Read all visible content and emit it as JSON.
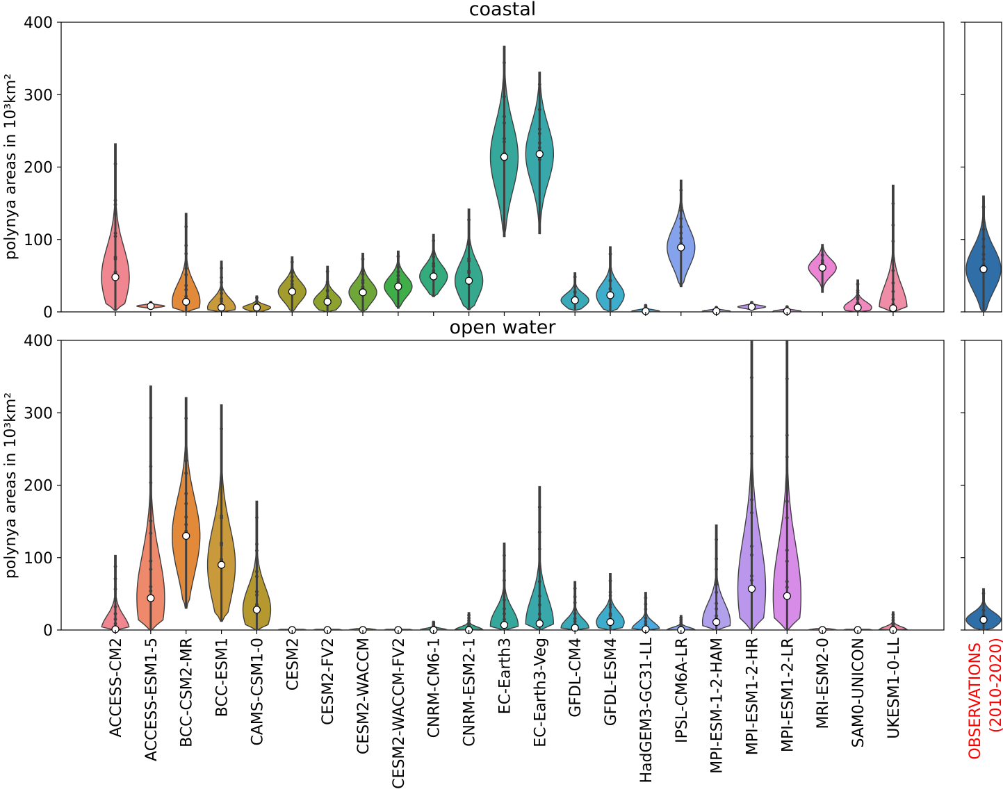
{
  "chart_data": [
    {
      "type": "violin",
      "title": "coastal",
      "ylabel": "polynya areas in 10³km²",
      "ylim": [
        0,
        400
      ],
      "yticks": [
        0,
        100,
        200,
        300,
        400
      ],
      "models": [
        "ACCESS-CM2",
        "ACCESS-ESM1-5",
        "BCC-CSM2-MR",
        "BCC-ESM1",
        "CAMS-CSM1-0",
        "CESM2",
        "CESM2-FV2",
        "CESM2-WACCM",
        "CESM2-WACCM-FV2",
        "CNRM-CM6-1",
        "CNRM-ESM2-1",
        "EC-Earth3",
        "EC-Earth3-Veg",
        "GFDL-CM4",
        "GFDL-ESM4",
        "HadGEM3-GC31-LL",
        "IPSL-CM6A-LR",
        "MPI-ESM-1-2-HAM",
        "MPI-ESM1-2-HR",
        "MPI-ESM1-2-LR",
        "MRI-ESM2-0",
        "SAM0-UNICON",
        "UKESM1-0-LL"
      ],
      "colors": [
        "#f0868f",
        "#ee8a6b",
        "#e28a3a",
        "#c99a3c",
        "#b5992f",
        "#a19c2d",
        "#8da22d",
        "#6ea63a",
        "#3fae49",
        "#33ab7c",
        "#35a88e",
        "#35a79b",
        "#38a8aa",
        "#3aa9b8",
        "#3eaccb",
        "#4aa9de",
        "#85a3ec",
        "#b1a0ec",
        "#ba96ec",
        "#d78ce8",
        "#ea84d3",
        "#f089bd",
        "#f08da6"
      ],
      "medians": [
        48,
        8,
        14,
        6,
        6,
        28,
        14,
        27,
        35,
        49,
        43,
        214,
        218,
        16,
        23,
        1,
        89,
        1,
        7,
        1,
        61,
        6,
        5
      ],
      "ranges": [
        [
          2,
          232
        ],
        [
          5,
          14
        ],
        [
          0,
          136
        ],
        [
          0,
          70
        ],
        [
          0,
          22
        ],
        [
          0,
          76
        ],
        [
          0,
          63
        ],
        [
          0,
          81
        ],
        [
          5,
          84
        ],
        [
          21,
          107
        ],
        [
          3,
          142
        ],
        [
          104,
          367
        ],
        [
          108,
          331
        ],
        [
          2,
          54
        ],
        [
          0,
          90
        ],
        [
          0,
          10
        ],
        [
          35,
          182
        ],
        [
          0,
          7
        ],
        [
          3,
          14
        ],
        [
          0,
          8
        ],
        [
          27,
          93
        ],
        [
          0,
          44
        ],
        [
          0,
          175
        ]
      ],
      "observations": {
        "label": "OBSERVATIONS\n(2010-2020)",
        "median": 59,
        "range": [
          -3,
          160
        ],
        "color": "#2f6ea6"
      }
    },
    {
      "type": "violin",
      "title": "open water",
      "ylabel": "polynya areas in 10³km²",
      "ylim": [
        0,
        400
      ],
      "yticks": [
        0,
        100,
        200,
        300,
        400
      ],
      "medians": [
        1,
        44,
        130,
        90,
        28,
        0,
        0,
        0,
        0,
        0,
        0,
        7,
        9,
        3,
        11,
        1,
        0,
        11,
        57,
        47,
        0,
        0,
        0
      ],
      "ranges": [
        [
          0,
          103
        ],
        [
          0,
          337
        ],
        [
          30,
          321
        ],
        [
          12,
          311
        ],
        [
          0,
          178
        ],
        [
          0,
          1
        ],
        [
          0,
          1
        ],
        [
          0,
          2
        ],
        [
          0,
          1
        ],
        [
          0,
          12
        ],
        [
          0,
          24
        ],
        [
          0,
          120
        ],
        [
          0,
          198
        ],
        [
          0,
          67
        ],
        [
          0,
          78
        ],
        [
          0,
          52
        ],
        [
          0,
          20
        ],
        [
          0,
          145
        ],
        [
          0,
          400
        ],
        [
          0,
          400
        ],
        [
          0,
          2
        ],
        [
          0,
          1
        ],
        [
          0,
          25
        ]
      ],
      "observations": {
        "label": "OBSERVATIONS\n(2010-2020)",
        "median": 14,
        "range": [
          0,
          57
        ],
        "color": "#2f6ea6"
      }
    }
  ],
  "obs_label_lines": [
    "OBSERVATIONS",
    "(2010-2020)"
  ],
  "obs_label_color": "#ff0000"
}
